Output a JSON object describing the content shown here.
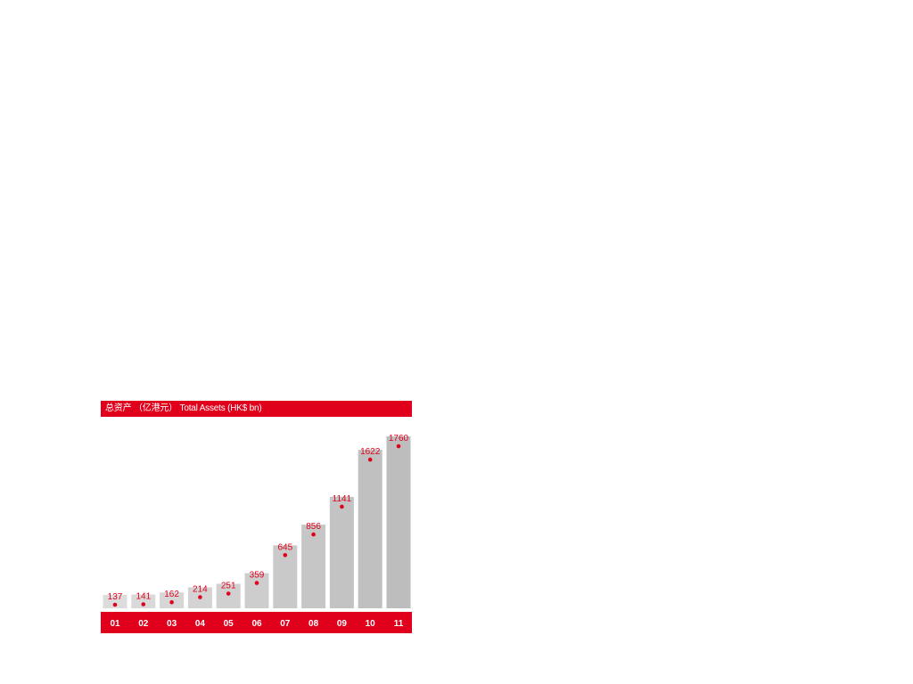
{
  "chart_data": {
    "type": "bar",
    "title": "总资产 （亿港元） Total Assets (HK$ bn)",
    "categories": [
      "01",
      "02",
      "03",
      "04",
      "05",
      "06",
      "07",
      "08",
      "09",
      "10",
      "11"
    ],
    "values": [
      137,
      141,
      162,
      214,
      251,
      359,
      645,
      856,
      1141,
      1622,
      1760
    ],
    "xlabel": "",
    "ylabel": "",
    "ylim": [
      0,
      1760
    ],
    "grid": false,
    "legend": "none",
    "colors": {
      "accent": "#e0001b",
      "bar_light": "#dcdcdc",
      "bar_dark": "#bdbdbd",
      "background": "#ffffff"
    }
  }
}
